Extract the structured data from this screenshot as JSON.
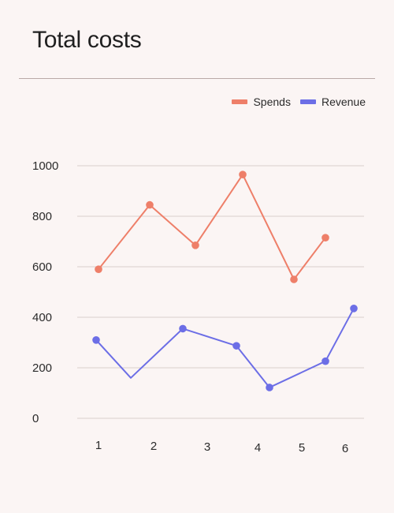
{
  "title": "Total costs",
  "legend": {
    "items": [
      {
        "label": "Spends",
        "color": "#ee7f69"
      },
      {
        "label": "Revenue",
        "color": "#6c6ee6"
      }
    ]
  },
  "chart_data": {
    "type": "line",
    "title": "Total costs",
    "xlabel": "",
    "ylabel": "",
    "ylim": [
      0,
      1000
    ],
    "yticks": [
      0,
      200,
      400,
      600,
      800,
      1000
    ],
    "xticks": [
      1,
      2,
      3,
      4,
      5,
      6
    ],
    "xlim": [
      0.6,
      6.9
    ],
    "grid": true,
    "legend_position": "top-right",
    "series": [
      {
        "name": "Spends",
        "color": "#ee7f69",
        "x": [
          1,
          2,
          2.9,
          3.85,
          4.85,
          5.55
        ],
        "y": [
          590,
          845,
          685,
          965,
          550,
          715
        ],
        "markers": [
          true,
          true,
          true,
          true,
          true,
          true
        ]
      },
      {
        "name": "Revenue",
        "color": "#6c6ee6",
        "x": [
          0.95,
          1.55,
          2.5,
          3.55,
          4.2,
          5.4,
          6.05
        ],
        "y": [
          310,
          160,
          355,
          287,
          122,
          226,
          435
        ],
        "markers": [
          true,
          false,
          true,
          true,
          true,
          true,
          true
        ]
      }
    ]
  }
}
